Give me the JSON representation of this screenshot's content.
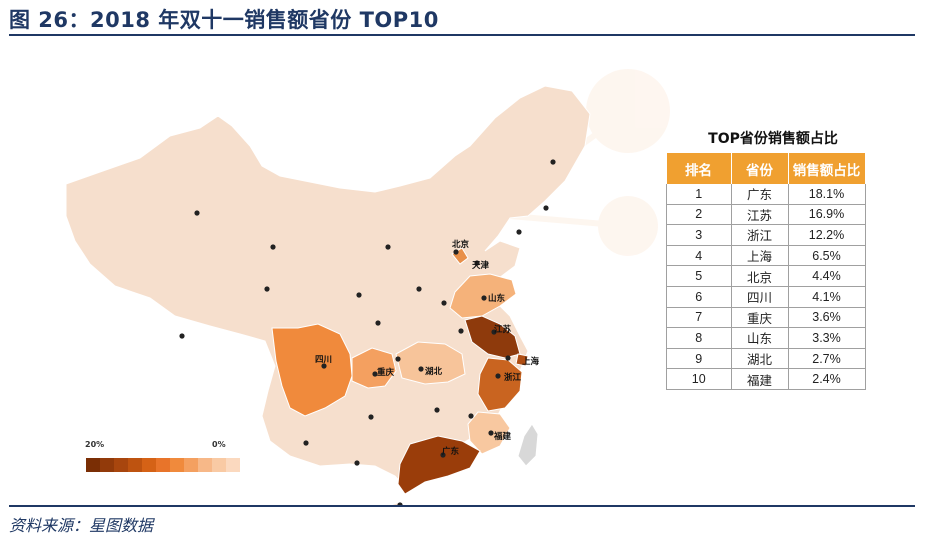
{
  "figure": {
    "title": "图 26：2018 年双十一销售额省份 TOP10",
    "source": "资料来源：星图数据"
  },
  "map": {
    "labels": {
      "beijing": "北京",
      "tianjin": "天津",
      "shandong": "山东",
      "jiangsu": "江苏",
      "shanghai": "上海",
      "zhejiang": "浙江",
      "sichuan": "四川",
      "chongqing": "重庆",
      "hubei": "湖北",
      "fujian": "福建",
      "guangdong": "广东"
    },
    "colors": {
      "base": "#f6dfcd",
      "guangdong": "#9a3d0a",
      "jiangsu": "#8e3a0c",
      "zhejiang": "#c96420",
      "shanghai": "#b04e12",
      "beijing": "#e8904a",
      "sichuan": "#f08a3c",
      "chongqing": "#f4a060",
      "shandong": "#f5b27a",
      "hubei": "#f7c49a",
      "fujian": "#f8c8a0",
      "taiwan": "#d8d8d8"
    },
    "legend": {
      "high_label": "20%",
      "low_label": "0%",
      "colors": [
        "#7a2e05",
        "#923a0a",
        "#a8460e",
        "#be5310",
        "#d56216",
        "#e8742a",
        "#f08a3c",
        "#f4a060",
        "#f7b888",
        "#f9caa4",
        "#fbd9bf"
      ]
    }
  },
  "table": {
    "title": "TOP省份销售额占比",
    "headers": [
      "排名",
      "省份",
      "销售额占比"
    ],
    "header_color": "#f0a030",
    "rows": [
      [
        "1",
        "广东",
        "18.1%"
      ],
      [
        "2",
        "江苏",
        "16.9%"
      ],
      [
        "3",
        "浙江",
        "12.2%"
      ],
      [
        "4",
        "上海",
        "6.5%"
      ],
      [
        "5",
        "北京",
        "4.4%"
      ],
      [
        "6",
        "四川",
        "4.1%"
      ],
      [
        "7",
        "重庆",
        "3.6%"
      ],
      [
        "8",
        "山东",
        "3.3%"
      ],
      [
        "9",
        "湖北",
        "2.7%"
      ],
      [
        "10",
        "福建",
        "2.4%"
      ]
    ]
  }
}
